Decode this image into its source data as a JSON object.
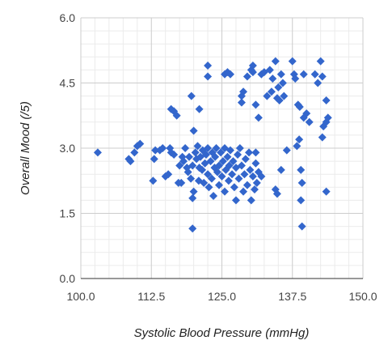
{
  "chart_data": {
    "type": "scatter",
    "title": "",
    "xlabel": "Systolic Blood Pressure (mmHg)",
    "ylabel": "Overall Mood (/5)",
    "xlim": [
      100,
      150
    ],
    "ylim": [
      0,
      6
    ],
    "x_ticks": [
      "100.0",
      "112.5",
      "125.0",
      "137.5",
      "150.0"
    ],
    "y_ticks": [
      "0.0",
      "1.5",
      "3.0",
      "4.5",
      "6.0"
    ],
    "grid": true,
    "legend": "none",
    "marker": "diamond",
    "colors": {
      "marker": "#3366cc",
      "major_grid": "#cccccc",
      "minor_grid": "#ebebeb"
    },
    "series": [
      {
        "points": [
          [
            103.0,
            2.9
          ],
          [
            108.5,
            2.75
          ],
          [
            108.8,
            2.7
          ],
          [
            109.5,
            2.9
          ],
          [
            110.0,
            3.05
          ],
          [
            110.5,
            3.1
          ],
          [
            112.8,
            2.25
          ],
          [
            113.0,
            2.75
          ],
          [
            113.2,
            2.95
          ],
          [
            114.0,
            2.95
          ],
          [
            114.5,
            3.0
          ],
          [
            115.0,
            2.35
          ],
          [
            115.5,
            2.4
          ],
          [
            115.8,
            3.0
          ],
          [
            116.0,
            2.9
          ],
          [
            116.5,
            2.85
          ],
          [
            116.0,
            3.9
          ],
          [
            116.5,
            3.85
          ],
          [
            117.0,
            3.75
          ],
          [
            117.3,
            2.2
          ],
          [
            117.8,
            2.2
          ],
          [
            117.5,
            2.6
          ],
          [
            118.0,
            2.8
          ],
          [
            118.2,
            2.7
          ],
          [
            118.5,
            3.0
          ],
          [
            118.8,
            2.55
          ],
          [
            119.0,
            2.45
          ],
          [
            119.2,
            2.8
          ],
          [
            119.5,
            2.3
          ],
          [
            119.8,
            2.6
          ],
          [
            119.6,
            4.2
          ],
          [
            120.0,
            3.4
          ],
          [
            119.8,
            1.85
          ],
          [
            120.0,
            2.0
          ],
          [
            120.3,
            2.9
          ],
          [
            120.5,
            2.75
          ],
          [
            120.7,
            3.05
          ],
          [
            120.9,
            2.25
          ],
          [
            121.0,
            2.55
          ],
          [
            121.2,
            2.8
          ],
          [
            121.5,
            2.5
          ],
          [
            121.0,
            3.9
          ],
          [
            121.6,
            2.95
          ],
          [
            121.8,
            2.2
          ],
          [
            122.0,
            2.65
          ],
          [
            122.2,
            2.85
          ],
          [
            122.5,
            2.4
          ],
          [
            122.5,
            3.0
          ],
          [
            122.7,
            2.1
          ],
          [
            123.0,
            2.7
          ],
          [
            123.2,
            2.3
          ],
          [
            123.3,
            2.9
          ],
          [
            123.5,
            1.9
          ],
          [
            123.7,
            2.55
          ],
          [
            123.8,
            2.8
          ],
          [
            124.0,
            3.0
          ],
          [
            124.2,
            2.45
          ],
          [
            124.5,
            2.15
          ],
          [
            124.5,
            2.6
          ],
          [
            124.8,
            2.9
          ],
          [
            125.0,
            2.35
          ],
          [
            125.2,
            2.7
          ],
          [
            125.5,
            3.0
          ],
          [
            125.5,
            2.0
          ],
          [
            125.7,
            2.5
          ],
          [
            126.0,
            2.8
          ],
          [
            126.2,
            2.25
          ],
          [
            126.3,
            2.6
          ],
          [
            126.5,
            2.95
          ],
          [
            126.8,
            2.4
          ],
          [
            127.0,
            2.7
          ],
          [
            127.2,
            2.1
          ],
          [
            127.5,
            1.8
          ],
          [
            127.5,
            2.55
          ],
          [
            127.8,
            2.85
          ],
          [
            128.0,
            2.3
          ],
          [
            128.2,
            3.0
          ],
          [
            128.5,
            2.6
          ],
          [
            128.8,
            2.0
          ],
          [
            129.0,
            2.4
          ],
          [
            129.2,
            2.75
          ],
          [
            129.5,
            2.15
          ],
          [
            129.8,
            2.9
          ],
          [
            130.0,
            2.5
          ],
          [
            130.2,
            1.8
          ],
          [
            130.5,
            2.35
          ],
          [
            130.8,
            2.05
          ],
          [
            131.0,
            2.65
          ],
          [
            131.2,
            2.2
          ],
          [
            131.5,
            2.45
          ],
          [
            131.0,
            2.9
          ],
          [
            132.0,
            2.35
          ],
          [
            122.5,
            4.9
          ],
          [
            122.5,
            4.65
          ],
          [
            125.5,
            4.7
          ],
          [
            126.0,
            4.75
          ],
          [
            126.5,
            4.7
          ],
          [
            128.5,
            4.2
          ],
          [
            128.5,
            4.05
          ],
          [
            128.8,
            4.3
          ],
          [
            129.5,
            4.65
          ],
          [
            130.2,
            4.8
          ],
          [
            130.5,
            4.9
          ],
          [
            130.5,
            4.75
          ],
          [
            131.0,
            4.0
          ],
          [
            131.5,
            3.7
          ],
          [
            132.0,
            4.7
          ],
          [
            132.5,
            4.75
          ],
          [
            133.0,
            4.2
          ],
          [
            133.5,
            4.8
          ],
          [
            133.8,
            4.3
          ],
          [
            134.0,
            4.6
          ],
          [
            134.5,
            5.0
          ],
          [
            134.8,
            4.15
          ],
          [
            135.0,
            4.4
          ],
          [
            135.2,
            4.1
          ],
          [
            135.5,
            4.7
          ],
          [
            135.8,
            4.5
          ],
          [
            136.0,
            4.2
          ],
          [
            134.5,
            2.05
          ],
          [
            134.8,
            1.95
          ],
          [
            135.5,
            2.5
          ],
          [
            136.5,
            2.95
          ],
          [
            137.5,
            5.0
          ],
          [
            137.8,
            4.7
          ],
          [
            138.0,
            4.6
          ],
          [
            138.3,
            3.05
          ],
          [
            138.7,
            3.2
          ],
          [
            138.8,
            3.95
          ],
          [
            139.0,
            2.5
          ],
          [
            139.2,
            2.2
          ],
          [
            139.0,
            1.8
          ],
          [
            139.2,
            1.2
          ],
          [
            139.5,
            4.7
          ],
          [
            139.5,
            3.7
          ],
          [
            140.0,
            3.8
          ],
          [
            140.5,
            3.6
          ],
          [
            141.5,
            4.7
          ],
          [
            142.0,
            4.5
          ],
          [
            142.5,
            5.0
          ],
          [
            142.8,
            4.65
          ],
          [
            143.0,
            3.5
          ],
          [
            142.8,
            3.25
          ],
          [
            143.5,
            3.6
          ],
          [
            143.5,
            4.1
          ],
          [
            143.8,
            3.7
          ],
          [
            143.5,
            2.0
          ],
          [
            119.8,
            1.15
          ],
          [
            138.5,
            4.0
          ]
        ]
      }
    ]
  }
}
